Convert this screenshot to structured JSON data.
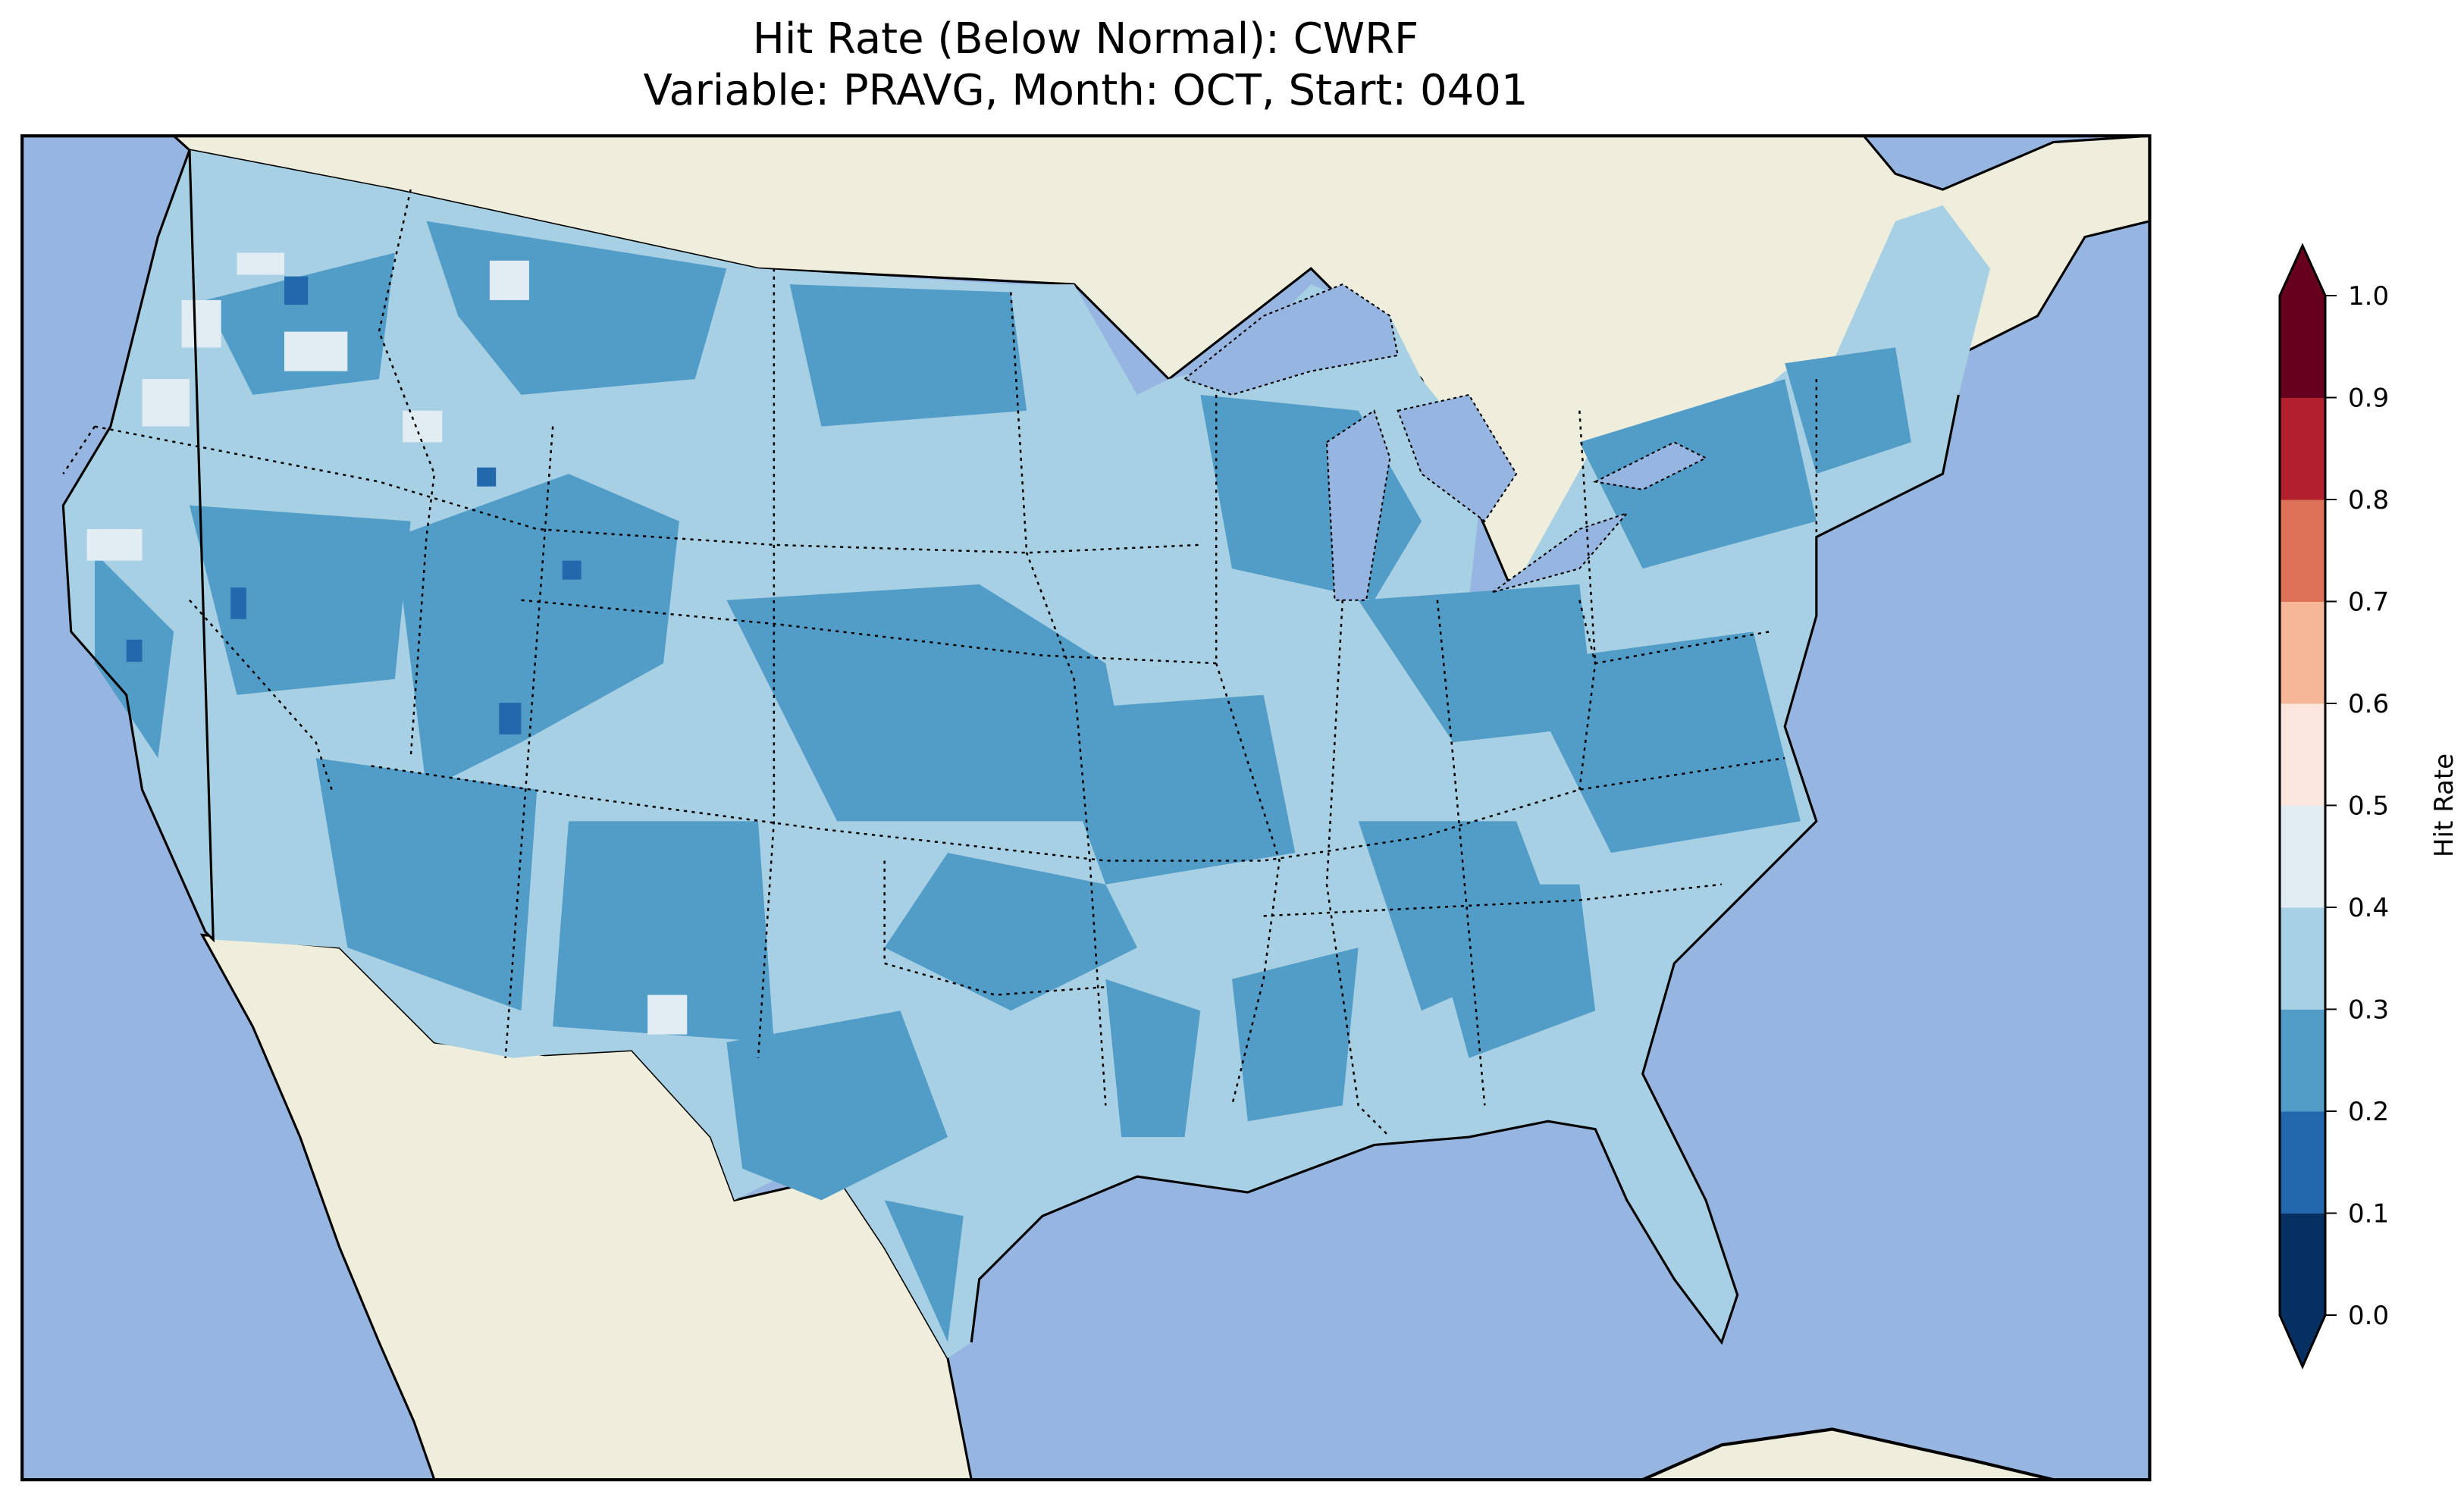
{
  "chart_data": {
    "type": "heatmap",
    "title": "Hit Rate (Below Normal): CWRF",
    "subtitle": "Variable: PRAVG, Month: OCT, Start: 0401",
    "region": "Contiguous United States",
    "colorbar": {
      "label": "Hit Rate",
      "range": [
        0.0,
        1.0
      ],
      "extend": "both",
      "ticks": [
        "0.0",
        "0.1",
        "0.2",
        "0.3",
        "0.4",
        "0.5",
        "0.6",
        "0.7",
        "0.8",
        "0.9",
        "1.0"
      ],
      "levels": [
        0.0,
        0.1,
        0.2,
        0.3,
        0.4,
        0.5,
        0.6,
        0.7,
        0.8,
        0.9,
        1.0
      ],
      "colors": [
        "#053061",
        "#2367ac",
        "#529dc8",
        "#a8d0e4",
        "#e1ecf3",
        "#fbe6de",
        "#f6b799",
        "#dd7259",
        "#b2202d",
        "#67001f"
      ]
    },
    "dominant_classes": [
      "0.2-0.3",
      "0.3-0.4"
    ],
    "occasional_classes": [
      "0.1-0.2",
      "0.4-0.5"
    ]
  },
  "colors": {
    "ocean": "#97b5e1",
    "land": "#efeedc",
    "lake": "#97b5e1"
  }
}
